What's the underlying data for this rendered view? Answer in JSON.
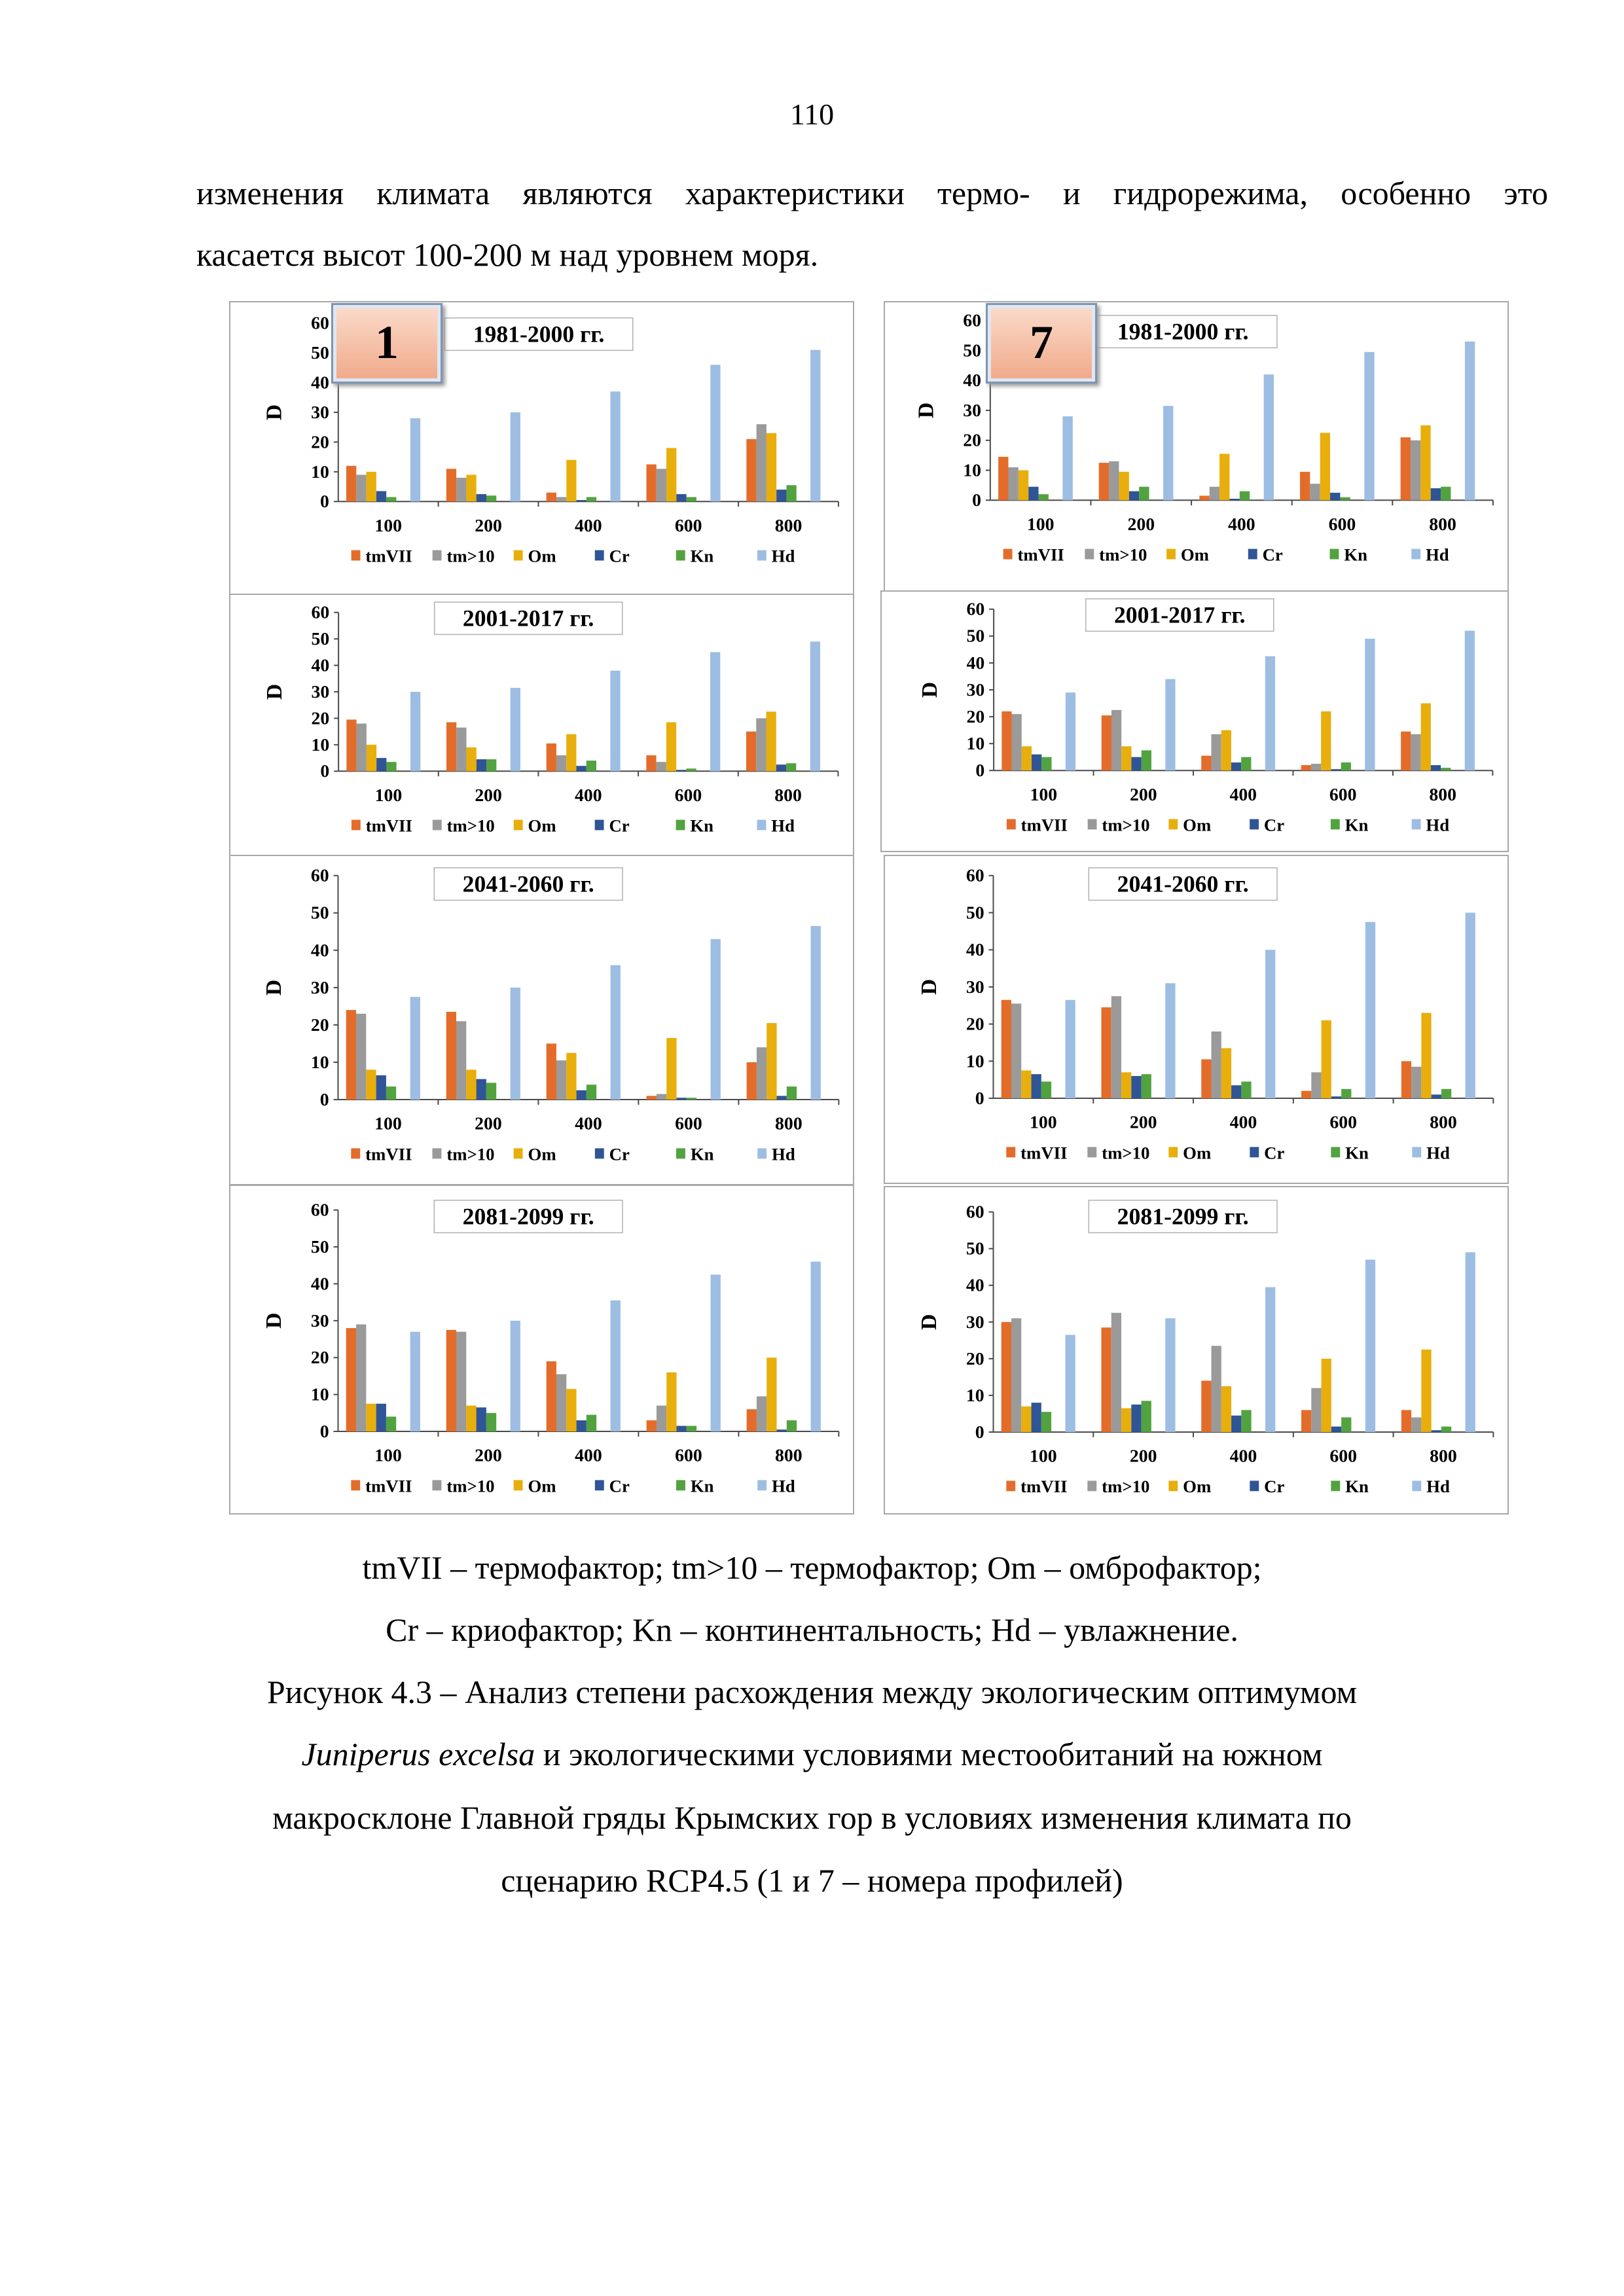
{
  "page_number": "110",
  "paragraph": {
    "line1": "изменения климата являются характеристики термо- и гидрорежима, особенно это",
    "line2": "касается высот 100-200 м над уровнем моря."
  },
  "legend_note": {
    "line1": "tmVII – термофактор; tm>10 – термофактор; Om – омброфактор;",
    "line2": "Cr – криофактор; Kn – континентальность; Hd – увлажнение."
  },
  "caption": {
    "line1": "Рисунок 4.3 – Анализ степени расхождения между экологическим оптимумом",
    "line2_italic": "Juniperus excelsa",
    "line2_rest": " и экологическими условиями местообитаний на южном",
    "line3": "макросклоне Главной гряды Крымских гор в условиях изменения климата по",
    "line4": "сценарию RCP4.5 (1 и 7 – номера профилей)"
  },
  "colors": {
    "tmVII": "#E46C2A",
    "tm>10": "#9A9A9A",
    "Om": "#E8AE0C",
    "Cr": "#2F5597",
    "Kn": "#52A33F",
    "Hd": "#9DBDE3",
    "axis": "#4a4a4a",
    "border": "#a8a8a8"
  },
  "chart_data": [
    {
      "type": "bar",
      "profile": "1",
      "title": "1981-2000 гг.",
      "ylabel": "D",
      "ylim": [
        0,
        60
      ],
      "yticks": [
        0,
        10,
        20,
        30,
        40,
        50,
        60
      ],
      "categories": [
        "100",
        "200",
        "400",
        "600",
        "800"
      ],
      "series": [
        {
          "name": "tmVII",
          "values": [
            12,
            11,
            3,
            12.5,
            21
          ]
        },
        {
          "name": "tm>10",
          "values": [
            9,
            8,
            1.5,
            11,
            26
          ]
        },
        {
          "name": "Om",
          "values": [
            10,
            9,
            14,
            18,
            23
          ]
        },
        {
          "name": "Cr",
          "values": [
            3.5,
            2.5,
            0.5,
            2.5,
            4
          ]
        },
        {
          "name": "Kn",
          "values": [
            1.5,
            2,
            1.5,
            1.5,
            5.5
          ]
        },
        {
          "name": "Hd",
          "values": [
            28,
            30,
            37,
            46,
            51
          ]
        }
      ]
    },
    {
      "type": "bar",
      "profile": "7",
      "title": "1981-2000 гг.",
      "ylabel": "D",
      "ylim": [
        0,
        60
      ],
      "yticks": [
        0,
        10,
        20,
        30,
        40,
        50,
        60
      ],
      "categories": [
        "100",
        "200",
        "400",
        "600",
        "800"
      ],
      "series": [
        {
          "name": "tmVII",
          "values": [
            14.5,
            12.5,
            1.5,
            9.5,
            21
          ]
        },
        {
          "name": "tm>10",
          "values": [
            11,
            13,
            4.5,
            5.5,
            20
          ]
        },
        {
          "name": "Om",
          "values": [
            10,
            9.5,
            15.5,
            22.5,
            25
          ]
        },
        {
          "name": "Cr",
          "values": [
            4.5,
            3,
            0.5,
            2.5,
            4
          ]
        },
        {
          "name": "Kn",
          "values": [
            2,
            4.5,
            3,
            1,
            4.5
          ]
        },
        {
          "name": "Hd",
          "values": [
            28,
            31.5,
            42,
            49.5,
            53
          ]
        }
      ]
    },
    {
      "type": "bar",
      "profile": "1",
      "title": "2001-2017 гг.",
      "ylabel": "D",
      "ylim": [
        0,
        60
      ],
      "yticks": [
        0,
        10,
        20,
        30,
        40,
        50,
        60
      ],
      "categories": [
        "100",
        "200",
        "400",
        "600",
        "800"
      ],
      "series": [
        {
          "name": "tmVII",
          "values": [
            19.5,
            18.5,
            10.5,
            6,
            15
          ]
        },
        {
          "name": "tm>10",
          "values": [
            18,
            16.5,
            6,
            3.5,
            20
          ]
        },
        {
          "name": "Om",
          "values": [
            10,
            9,
            14,
            18.5,
            22.5
          ]
        },
        {
          "name": "Cr",
          "values": [
            5,
            4.5,
            2,
            0.5,
            2.5
          ]
        },
        {
          "name": "Kn",
          "values": [
            3.5,
            4.5,
            4,
            1,
            3
          ]
        },
        {
          "name": "Hd",
          "values": [
            30,
            31.5,
            38,
            45,
            49
          ]
        }
      ]
    },
    {
      "type": "bar",
      "profile": "7",
      "title": "2001-2017 гг.",
      "ylabel": "D",
      "ylim": [
        0,
        60
      ],
      "yticks": [
        0,
        10,
        20,
        30,
        40,
        50,
        60
      ],
      "categories": [
        "100",
        "200",
        "400",
        "600",
        "800"
      ],
      "series": [
        {
          "name": "tmVII",
          "values": [
            22,
            20.5,
            5.5,
            2,
            14.5
          ]
        },
        {
          "name": "tm>10",
          "values": [
            21,
            22.5,
            13.5,
            2.5,
            13.5
          ]
        },
        {
          "name": "Om",
          "values": [
            9,
            9,
            15,
            22,
            25
          ]
        },
        {
          "name": "Cr",
          "values": [
            6,
            5,
            3,
            0.5,
            2
          ]
        },
        {
          "name": "Kn",
          "values": [
            5,
            7.5,
            5,
            3,
            1
          ]
        },
        {
          "name": "Hd",
          "values": [
            29,
            34,
            42.5,
            49,
            52
          ]
        }
      ]
    },
    {
      "type": "bar",
      "profile": "1",
      "title": "2041-2060 гг.",
      "ylabel": "D",
      "ylim": [
        0,
        60
      ],
      "yticks": [
        0,
        10,
        20,
        30,
        40,
        50,
        60
      ],
      "categories": [
        "100",
        "200",
        "400",
        "600",
        "800"
      ],
      "series": [
        {
          "name": "tmVII",
          "values": [
            24,
            23.5,
            15,
            1,
            10
          ]
        },
        {
          "name": "tm>10",
          "values": [
            23,
            21,
            10.5,
            1.5,
            14
          ]
        },
        {
          "name": "Om",
          "values": [
            8,
            8,
            12.5,
            16.5,
            20.5
          ]
        },
        {
          "name": "Cr",
          "values": [
            6.5,
            5.5,
            2.5,
            0.5,
            1
          ]
        },
        {
          "name": "Kn",
          "values": [
            3.5,
            4.5,
            4,
            0.5,
            3.5
          ]
        },
        {
          "name": "Hd",
          "values": [
            27.5,
            30,
            36,
            43,
            46.5
          ]
        }
      ]
    },
    {
      "type": "bar",
      "profile": "7",
      "title": "2041-2060 гг.",
      "ylabel": "D",
      "ylim": [
        0,
        60
      ],
      "yticks": [
        0,
        10,
        20,
        30,
        40,
        50,
        60
      ],
      "categories": [
        "100",
        "200",
        "400",
        "600",
        "800"
      ],
      "series": [
        {
          "name": "tmVII",
          "values": [
            26.5,
            24.5,
            10.5,
            2,
            10
          ]
        },
        {
          "name": "tm>10",
          "values": [
            25.5,
            27.5,
            18,
            7,
            8.5
          ]
        },
        {
          "name": "Om",
          "values": [
            7.5,
            7,
            13.5,
            21,
            23
          ]
        },
        {
          "name": "Cr",
          "values": [
            6.5,
            6,
            3.5,
            0.5,
            1
          ]
        },
        {
          "name": "Kn",
          "values": [
            4.5,
            6.5,
            4.5,
            2.5,
            2.5
          ]
        },
        {
          "name": "Hd",
          "values": [
            26.5,
            31,
            40,
            47.5,
            50
          ]
        }
      ]
    },
    {
      "type": "bar",
      "profile": "1",
      "title": "2081-2099 гг.",
      "ylabel": "D",
      "ylim": [
        0,
        60
      ],
      "yticks": [
        0,
        10,
        20,
        30,
        40,
        50,
        60
      ],
      "categories": [
        "100",
        "200",
        "400",
        "600",
        "800"
      ],
      "series": [
        {
          "name": "tmVII",
          "values": [
            28,
            27.5,
            19,
            3,
            6
          ]
        },
        {
          "name": "tm>10",
          "values": [
            29,
            27,
            15.5,
            7,
            9.5
          ]
        },
        {
          "name": "Om",
          "values": [
            7.5,
            7,
            11.5,
            16,
            20
          ]
        },
        {
          "name": "Cr",
          "values": [
            7.5,
            6.5,
            3,
            1.5,
            0.5
          ]
        },
        {
          "name": "Kn",
          "values": [
            4,
            5,
            4.5,
            1.5,
            3
          ]
        },
        {
          "name": "Hd",
          "values": [
            27,
            30,
            35.5,
            42.5,
            46
          ]
        }
      ]
    },
    {
      "type": "bar",
      "profile": "7",
      "title": "2081-2099 гг.",
      "ylabel": "D",
      "ylim": [
        0,
        60
      ],
      "yticks": [
        0,
        10,
        20,
        30,
        40,
        50,
        60
      ],
      "categories": [
        "100",
        "200",
        "400",
        "600",
        "800"
      ],
      "series": [
        {
          "name": "tmVII",
          "values": [
            30,
            28.5,
            14,
            6,
            6
          ]
        },
        {
          "name": "tm>10",
          "values": [
            31,
            32.5,
            23.5,
            12,
            4
          ]
        },
        {
          "name": "Om",
          "values": [
            7,
            6.5,
            12.5,
            20,
            22.5
          ]
        },
        {
          "name": "Cr",
          "values": [
            8,
            7.5,
            4.5,
            1.5,
            0.5
          ]
        },
        {
          "name": "Kn",
          "values": [
            5.5,
            8.5,
            6,
            4,
            1.5
          ]
        },
        {
          "name": "Hd",
          "values": [
            26.5,
            31,
            39.5,
            47,
            49
          ]
        }
      ]
    }
  ]
}
